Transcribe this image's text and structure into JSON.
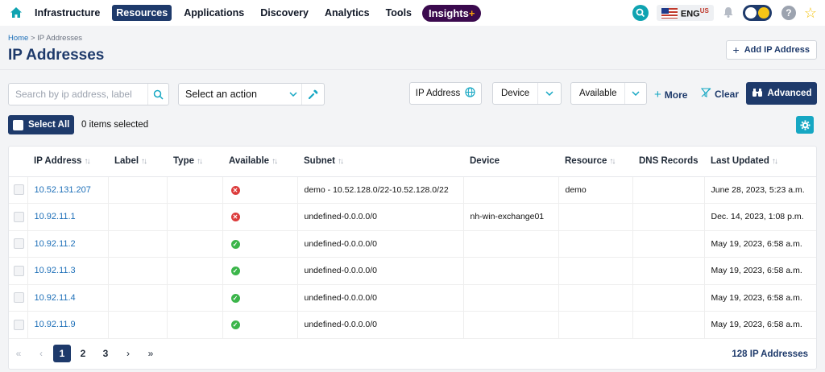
{
  "nav": {
    "items": [
      "Infrastructure",
      "Resources",
      "Applications",
      "Discovery",
      "Analytics",
      "Tools"
    ],
    "active": "Resources",
    "insights_label": "Insights",
    "insights_plus": "+",
    "lang": "ENG",
    "lang_sub": "US"
  },
  "breadcrumb": {
    "home": "Home",
    "sep": " > ",
    "current": "IP Addresses"
  },
  "page": {
    "title": "IP Addresses",
    "add_button": "Add IP Address"
  },
  "filters": {
    "search_placeholder": "Search by ip address, label",
    "action_select": "Select an action",
    "ip_address": "IP Address",
    "device": "Device",
    "available": "Available",
    "more": "More",
    "clear": "Clear",
    "advanced": "Advanced"
  },
  "selection": {
    "select_all": "Select All",
    "items_selected": "0 items selected"
  },
  "table": {
    "headers": [
      {
        "label": "IP Address",
        "sortable": true
      },
      {
        "label": "Label",
        "sortable": true
      },
      {
        "label": "Type",
        "sortable": true
      },
      {
        "label": "Available",
        "sortable": true
      },
      {
        "label": "Subnet",
        "sortable": true
      },
      {
        "label": "Device",
        "sortable": false
      },
      {
        "label": "Resource",
        "sortable": true
      },
      {
        "label": "DNS Records",
        "sortable": false
      },
      {
        "label": "Last Updated",
        "sortable": true
      }
    ],
    "rows": [
      {
        "ip": "10.52.131.207",
        "label": "",
        "type": "",
        "available": false,
        "subnet": "demo - 10.52.128.0/22-10.52.128.0/22",
        "device": "",
        "resource": "demo",
        "dns": "",
        "updated": "June 28, 2023, 5:23 a.m."
      },
      {
        "ip": "10.92.11.1",
        "label": "",
        "type": "",
        "available": false,
        "subnet": "undefined-0.0.0.0/0",
        "device": "nh-win-exchange01",
        "resource": "",
        "dns": "",
        "updated": "Dec. 14, 2023, 1:08 p.m."
      },
      {
        "ip": "10.92.11.2",
        "label": "",
        "type": "",
        "available": true,
        "subnet": "undefined-0.0.0.0/0",
        "device": "",
        "resource": "",
        "dns": "",
        "updated": "May 19, 2023, 6:58 a.m."
      },
      {
        "ip": "10.92.11.3",
        "label": "",
        "type": "",
        "available": true,
        "subnet": "undefined-0.0.0.0/0",
        "device": "",
        "resource": "",
        "dns": "",
        "updated": "May 19, 2023, 6:58 a.m."
      },
      {
        "ip": "10.92.11.4",
        "label": "",
        "type": "",
        "available": true,
        "subnet": "undefined-0.0.0.0/0",
        "device": "",
        "resource": "",
        "dns": "",
        "updated": "May 19, 2023, 6:58 a.m."
      },
      {
        "ip": "10.92.11.9",
        "label": "",
        "type": "",
        "available": true,
        "subnet": "undefined-0.0.0.0/0",
        "device": "",
        "resource": "",
        "dns": "",
        "updated": "May 19, 2023, 6:58 a.m."
      }
    ]
  },
  "pagination": {
    "pages": [
      "1",
      "2",
      "3"
    ],
    "current": "1",
    "total": "128 IP Addresses"
  },
  "colors": {
    "navy": "#1e3a6b",
    "teal": "#16a7c3",
    "insights": "#3b0a4e",
    "available_yes": "#3bb54a",
    "available_no": "#dc3c3c"
  }
}
